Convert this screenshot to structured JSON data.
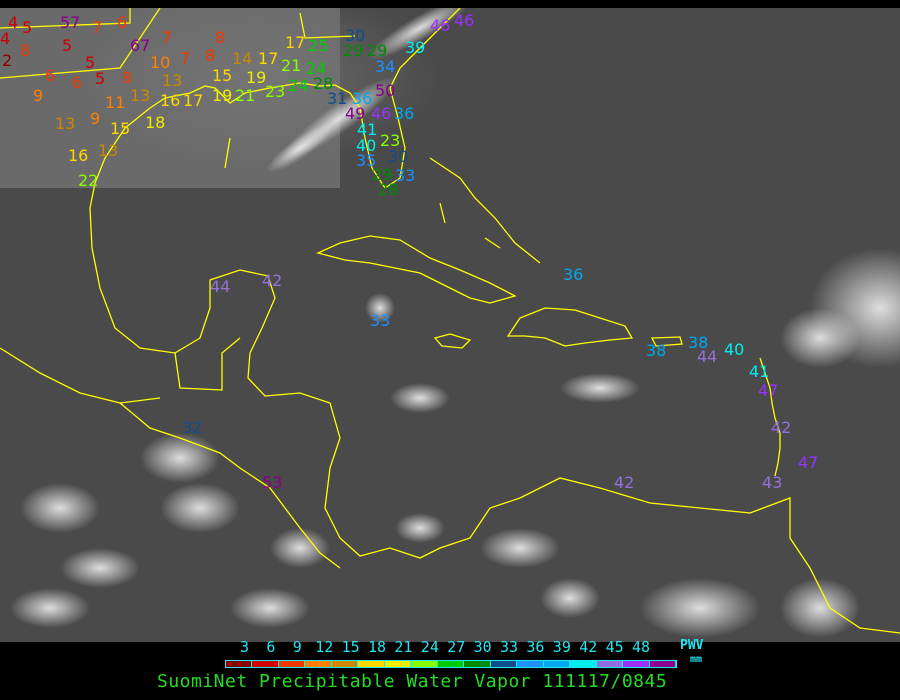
{
  "title": "SuomiNet Precipitable Water Vapor 111117/0845",
  "legend": {
    "ticks": [
      "3",
      "6",
      "9",
      "12",
      "15",
      "18",
      "21",
      "24",
      "27",
      "30",
      "33",
      "36",
      "39",
      "42",
      "45",
      "48"
    ],
    "unit_label": "PWV",
    "unit": "mm",
    "colors": [
      "#8b0000",
      "#cc0000",
      "#ee3a00",
      "#ff8000",
      "#cc8800",
      "#ffd700",
      "#eeee00",
      "#88ff00",
      "#00cc00",
      "#008b00",
      "#104e8b",
      "#1e90ff",
      "#00a8ee",
      "#00eeee",
      "#9370db",
      "#9b30ff",
      "#8b008b"
    ]
  },
  "stations": [
    "4",
    "4",
    "5",
    "2",
    "8",
    "57",
    "7",
    "6",
    "5",
    "6",
    "9",
    "5",
    "6",
    "5",
    "8",
    "13",
    "9",
    "11",
    "13",
    "10",
    "13",
    "67",
    "7",
    "8",
    "7",
    "8",
    "15",
    "14",
    "17",
    "19",
    "19",
    "21",
    "16",
    "17",
    "15",
    "18",
    "16",
    "13",
    "22",
    "17",
    "21",
    "25",
    "24",
    "23",
    "24",
    "28",
    "31",
    "36",
    "30",
    "29",
    "29",
    "34",
    "39",
    "46",
    "46",
    "50",
    "49",
    "46",
    "36",
    "41",
    "40",
    "35",
    "23",
    "30",
    "29",
    "28",
    "33",
    "36",
    "44",
    "42",
    "33",
    "32",
    "53",
    "38",
    "38",
    "44",
    "40",
    "41",
    "47",
    "42",
    "47",
    "43",
    "42"
  ]
}
